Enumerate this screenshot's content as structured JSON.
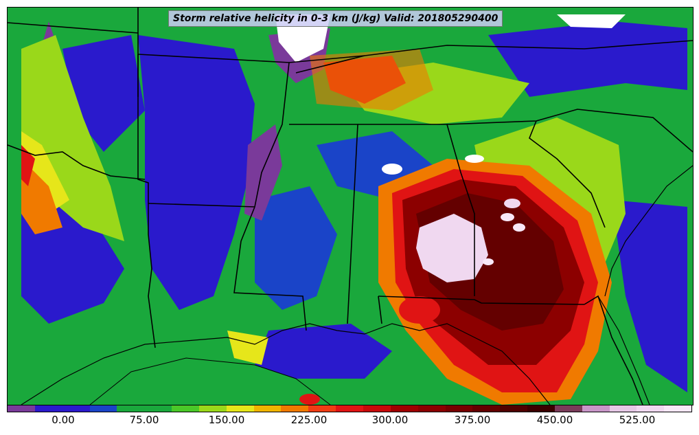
{
  "title": "Storm relative helicity in 0-3 km (J/kg) Valid: 201805290400",
  "colorbar": {
    "ticks": [
      "0.00",
      "75.00",
      "150.00",
      "225.00",
      "300.00",
      "375.00",
      "450.00",
      "525.00"
    ],
    "colors": [
      "#7a3a9a",
      "#2a1acc",
      "#2a1acc",
      "#1a44c8",
      "#1aa83c",
      "#1aa83c",
      "#4ac828",
      "#9ad81a",
      "#e6e61a",
      "#f0b400",
      "#f07a00",
      "#f03c14",
      "#e01414",
      "#c80a0a",
      "#a00000",
      "#8c0000",
      "#780000",
      "#640000",
      "#500000",
      "#3c0000",
      "#7a3c5a",
      "#c896c8",
      "#e6c8e6",
      "#f0d8f0",
      "#f8e8f8"
    ]
  },
  "map": {
    "colors": {
      "green": "#1aa83c",
      "blue": "#2a1acc",
      "purple": "#7a3a9a",
      "yellowgreen": "#9ad81a",
      "yellow": "#e6e61a",
      "orange": "#f07a00",
      "red": "#e01414",
      "darkred": "#8c0000",
      "maroon": "#640000",
      "pink": "#f0d8f0",
      "white": "#ffffff"
    }
  }
}
